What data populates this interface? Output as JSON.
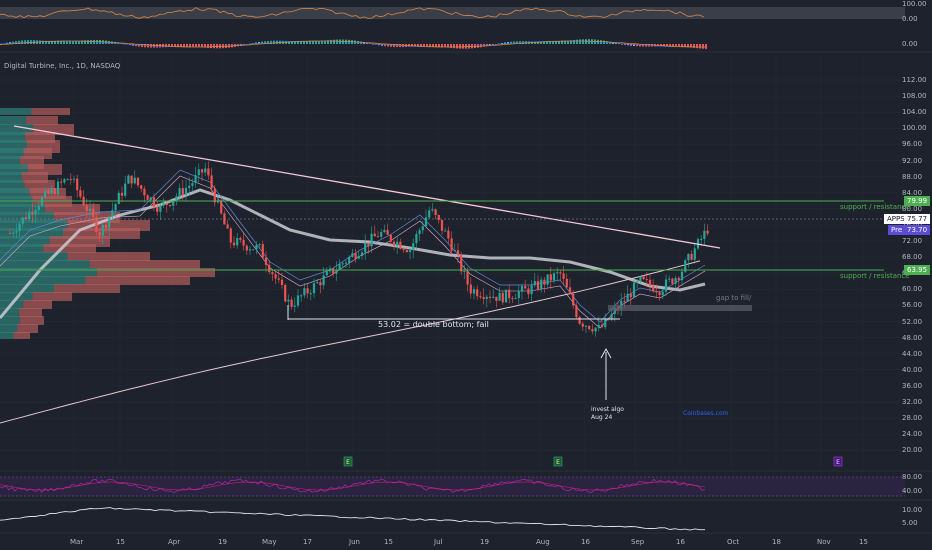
{
  "symbol": {
    "title": "Digital Turbine, Inc., 1D, NASDAQ",
    "ticker": "APPS",
    "last_price": "75.77",
    "pre_label": "Pre",
    "pre_price": "73.70"
  },
  "price_axis": {
    "ticks": [
      "112.00",
      "108.00",
      "104.00",
      "100.00",
      "96.00",
      "92.00",
      "88.00",
      "84.00",
      "80.00",
      "76.00",
      "72.00",
      "68.00",
      "64.00",
      "60.00",
      "56.00",
      "52.00",
      "48.00",
      "44.00",
      "40.00",
      "36.00",
      "32.00",
      "28.00",
      "24.00",
      "20.00"
    ],
    "highlight_labels": [
      "79.99",
      "63.95"
    ]
  },
  "top_indicator_axis": {
    "ticks": [
      "100.00",
      "0.00",
      "0.00"
    ]
  },
  "rsi_axis": {
    "ticks": [
      "80.00",
      "40.00"
    ]
  },
  "bottom_axis": {
    "ticks": [
      "10.00",
      "5.00"
    ]
  },
  "time_axis": {
    "labels": [
      "Mar",
      "15",
      "Apr",
      "19",
      "May",
      "17",
      "Jun",
      "15",
      "Jul",
      "19",
      "Aug",
      "16",
      "Sep",
      "16",
      "Oct",
      "18",
      "Nov",
      "15"
    ]
  },
  "annotations": {
    "support_resistance_label": "support / resistance",
    "double_bottom": "53.02 = double bottom; fail",
    "gap": "gap to fill/",
    "invest_algo_line1": "invest algo",
    "invest_algo_line2": "Aug 24",
    "watermark": "Coinbases.com"
  },
  "events": {
    "earnings_icon": "E"
  },
  "colors": {
    "background": "#1e222d",
    "up": "#26a69a",
    "down": "#ef5350",
    "support": "#4caf50",
    "trendline": "#f8c8d8",
    "ticker_tag": "#ffffff",
    "pre_tag": "#5b4bd6"
  }
}
